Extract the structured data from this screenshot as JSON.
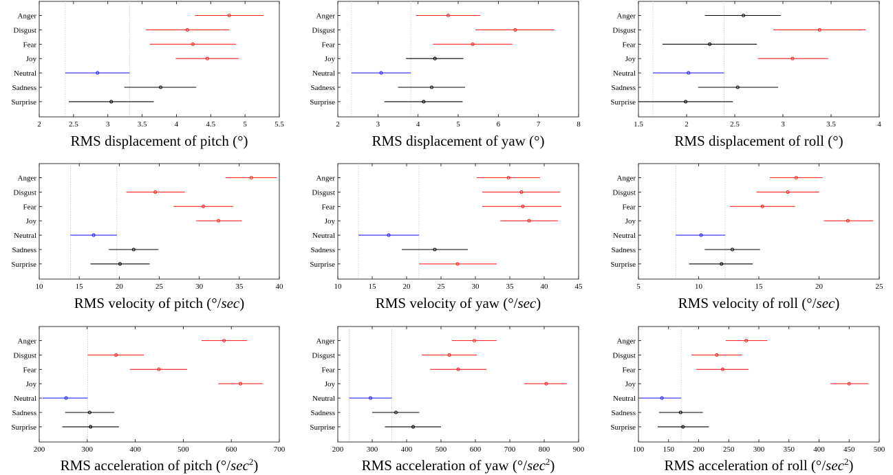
{
  "chart_data": [
    {
      "type": "scatter",
      "categories": [
        "Anger",
        "Disgust",
        "Fear",
        "Joy",
        "Neutral",
        "Sadness",
        "Surprise"
      ],
      "xlim": [
        2,
        5.5
      ],
      "xticks": [
        2,
        2.5,
        3,
        3.5,
        4,
        4.5,
        5,
        5.5
      ],
      "xtick_labels": [
        "2",
        "2.5",
        "3",
        "3.5",
        "4",
        "4.5",
        "5",
        "5.5"
      ],
      "points": [
        {
          "category": "Anger",
          "value": 4.77,
          "low": 4.27,
          "high": 5.27,
          "color": "red"
        },
        {
          "category": "Disgust",
          "value": 4.16,
          "low": 3.55,
          "high": 4.77,
          "color": "red"
        },
        {
          "category": "Fear",
          "value": 4.24,
          "low": 3.61,
          "high": 4.87,
          "color": "red"
        },
        {
          "category": "Joy",
          "value": 4.45,
          "low": 3.99,
          "high": 4.91,
          "color": "red"
        },
        {
          "category": "Neutral",
          "value": 2.85,
          "low": 2.38,
          "high": 3.32,
          "color": "blue"
        },
        {
          "category": "Sadness",
          "value": 3.77,
          "low": 3.24,
          "high": 4.29,
          "color": "black"
        },
        {
          "category": "Surprise",
          "value": 3.05,
          "low": 2.43,
          "high": 3.67,
          "color": "black"
        }
      ],
      "ref_lines": [
        2.38,
        3.32
      ],
      "xlabel_pre": "RMS displacement of pitch (°)",
      "xlabel_unit": "",
      "xlabel_sup": "",
      "xlabel_post": ""
    },
    {
      "type": "scatter",
      "categories": [
        "Anger",
        "Disgust",
        "Fear",
        "Joy",
        "Neutral",
        "Sadness",
        "Surprise"
      ],
      "xlim": [
        2,
        8
      ],
      "xticks": [
        2,
        3,
        4,
        5,
        6,
        7,
        8
      ],
      "xtick_labels": [
        "2",
        "3",
        "4",
        "5",
        "6",
        "7",
        "8"
      ],
      "points": [
        {
          "category": "Anger",
          "value": 4.75,
          "low": 3.95,
          "high": 5.55,
          "color": "red"
        },
        {
          "category": "Disgust",
          "value": 6.42,
          "low": 5.43,
          "high": 7.4,
          "color": "red"
        },
        {
          "category": "Fear",
          "value": 5.36,
          "low": 4.37,
          "high": 6.35,
          "color": "red"
        },
        {
          "category": "Joy",
          "value": 4.42,
          "low": 3.7,
          "high": 5.13,
          "color": "black"
        },
        {
          "category": "Neutral",
          "value": 3.08,
          "low": 2.34,
          "high": 3.82,
          "color": "blue"
        },
        {
          "category": "Sadness",
          "value": 4.34,
          "low": 3.5,
          "high": 5.17,
          "color": "black"
        },
        {
          "category": "Surprise",
          "value": 4.14,
          "low": 3.16,
          "high": 5.11,
          "color": "black"
        }
      ],
      "ref_lines": [
        2.34,
        3.82
      ],
      "xlabel_pre": "RMS displacement of yaw (°)",
      "xlabel_unit": "",
      "xlabel_sup": "",
      "xlabel_post": ""
    },
    {
      "type": "scatter",
      "categories": [
        "Anger",
        "Disgust",
        "Fear",
        "Joy",
        "Neutral",
        "Sadness",
        "Surprise"
      ],
      "xlim": [
        1.5,
        4
      ],
      "xticks": [
        1.5,
        2,
        2.5,
        3,
        3.5,
        4
      ],
      "xtick_labels": [
        "1.5",
        "2",
        "2.5",
        "3",
        "3.5",
        "4"
      ],
      "points": [
        {
          "category": "Anger",
          "value": 2.59,
          "low": 2.19,
          "high": 2.98,
          "color": "black"
        },
        {
          "category": "Disgust",
          "value": 3.38,
          "low": 2.9,
          "high": 3.86,
          "color": "red"
        },
        {
          "category": "Fear",
          "value": 2.24,
          "low": 1.75,
          "high": 2.73,
          "color": "black"
        },
        {
          "category": "Joy",
          "value": 3.1,
          "low": 2.74,
          "high": 3.47,
          "color": "red"
        },
        {
          "category": "Neutral",
          "value": 2.02,
          "low": 1.65,
          "high": 2.39,
          "color": "blue"
        },
        {
          "category": "Sadness",
          "value": 2.53,
          "low": 2.12,
          "high": 2.95,
          "color": "black"
        },
        {
          "category": "Surprise",
          "value": 1.99,
          "low": 1.5,
          "high": 2.48,
          "color": "black"
        }
      ],
      "ref_lines": [
        1.65,
        2.39
      ],
      "xlabel_pre": "RMS displacement of roll (°)",
      "xlabel_unit": "",
      "xlabel_sup": "",
      "xlabel_post": ""
    },
    {
      "type": "scatter",
      "categories": [
        "Anger",
        "Disgust",
        "Fear",
        "Joy",
        "Neutral",
        "Sadness",
        "Surprise"
      ],
      "xlim": [
        10,
        40
      ],
      "xticks": [
        10,
        15,
        20,
        25,
        30,
        35,
        40
      ],
      "xtick_labels": [
        "10",
        "15",
        "20",
        "25",
        "30",
        "35",
        "40"
      ],
      "points": [
        {
          "category": "Anger",
          "value": 36.5,
          "low": 33.3,
          "high": 39.7,
          "color": "red"
        },
        {
          "category": "Disgust",
          "value": 24.5,
          "low": 20.9,
          "high": 28.2,
          "color": "red"
        },
        {
          "category": "Fear",
          "value": 30.5,
          "low": 26.8,
          "high": 34.2,
          "color": "red"
        },
        {
          "category": "Joy",
          "value": 32.4,
          "low": 29.6,
          "high": 35.3,
          "color": "red"
        },
        {
          "category": "Neutral",
          "value": 16.8,
          "low": 13.9,
          "high": 19.7,
          "color": "blue"
        },
        {
          "category": "Sadness",
          "value": 21.8,
          "low": 18.7,
          "high": 24.9,
          "color": "black"
        },
        {
          "category": "Surprise",
          "value": 20.1,
          "low": 16.4,
          "high": 23.8,
          "color": "black"
        }
      ],
      "ref_lines": [
        13.9,
        19.7
      ],
      "xlabel_pre": "RMS velocity of pitch (°/",
      "xlabel_unit": "sec",
      "xlabel_sup": "",
      "xlabel_post": ")"
    },
    {
      "type": "scatter",
      "categories": [
        "Anger",
        "Disgust",
        "Fear",
        "Joy",
        "Neutral",
        "Sadness",
        "Surprise"
      ],
      "xlim": [
        10,
        45
      ],
      "xticks": [
        10,
        15,
        20,
        25,
        30,
        35,
        40,
        45
      ],
      "xtick_labels": [
        "10",
        "15",
        "20",
        "25",
        "30",
        "35",
        "40",
        "45"
      ],
      "points": [
        {
          "category": "Anger",
          "value": 34.8,
          "low": 30.2,
          "high": 39.4,
          "color": "red"
        },
        {
          "category": "Disgust",
          "value": 36.7,
          "low": 31.0,
          "high": 42.3,
          "color": "red"
        },
        {
          "category": "Fear",
          "value": 36.9,
          "low": 31.0,
          "high": 42.5,
          "color": "red"
        },
        {
          "category": "Joy",
          "value": 37.8,
          "low": 33.6,
          "high": 42.0,
          "color": "red"
        },
        {
          "category": "Neutral",
          "value": 17.4,
          "low": 13.0,
          "high": 21.8,
          "color": "blue"
        },
        {
          "category": "Sadness",
          "value": 24.1,
          "low": 19.3,
          "high": 28.9,
          "color": "black"
        },
        {
          "category": "Surprise",
          "value": 27.4,
          "low": 21.8,
          "high": 33.1,
          "color": "red"
        }
      ],
      "ref_lines": [
        13.0,
        21.8
      ],
      "xlabel_pre": "RMS velocity of yaw (°/",
      "xlabel_unit": "sec",
      "xlabel_sup": "",
      "xlabel_post": ")"
    },
    {
      "type": "scatter",
      "categories": [
        "Anger",
        "Disgust",
        "Fear",
        "Joy",
        "Neutral",
        "Sadness",
        "Surprise"
      ],
      "xlim": [
        5,
        25
      ],
      "xticks": [
        5,
        10,
        15,
        20,
        25
      ],
      "xtick_labels": [
        "5",
        "10",
        "15",
        "20",
        "25"
      ],
      "points": [
        {
          "category": "Anger",
          "value": 18.1,
          "low": 15.9,
          "high": 20.3,
          "color": "red"
        },
        {
          "category": "Disgust",
          "value": 17.4,
          "low": 14.8,
          "high": 20.0,
          "color": "red"
        },
        {
          "category": "Fear",
          "value": 15.3,
          "low": 12.6,
          "high": 18.0,
          "color": "red"
        },
        {
          "category": "Joy",
          "value": 22.4,
          "low": 20.4,
          "high": 24.5,
          "color": "red"
        },
        {
          "category": "Neutral",
          "value": 10.2,
          "low": 8.1,
          "high": 12.2,
          "color": "blue"
        },
        {
          "category": "Sadness",
          "value": 12.8,
          "low": 10.5,
          "high": 15.1,
          "color": "black"
        },
        {
          "category": "Surprise",
          "value": 11.9,
          "low": 9.2,
          "high": 14.5,
          "color": "black"
        }
      ],
      "ref_lines": [
        8.1,
        12.2
      ],
      "xlabel_pre": "RMS velocity of roll (°/",
      "xlabel_unit": "sec",
      "xlabel_sup": "",
      "xlabel_post": ")"
    },
    {
      "type": "scatter",
      "categories": [
        "Anger",
        "Disgust",
        "Fear",
        "Joy",
        "Neutral",
        "Sadness",
        "Surprise"
      ],
      "xlim": [
        200,
        700
      ],
      "xticks": [
        200,
        300,
        400,
        500,
        600,
        700
      ],
      "xtick_labels": [
        "200",
        "300",
        "400",
        "500",
        "600",
        "700"
      ],
      "points": [
        {
          "category": "Anger",
          "value": 585,
          "low": 538,
          "high": 633,
          "color": "red"
        },
        {
          "category": "Disgust",
          "value": 360,
          "low": 301,
          "high": 418,
          "color": "red"
        },
        {
          "category": "Fear",
          "value": 449,
          "low": 389,
          "high": 508,
          "color": "red"
        },
        {
          "category": "Joy",
          "value": 619,
          "low": 573,
          "high": 665,
          "color": "red"
        },
        {
          "category": "Neutral",
          "value": 256,
          "low": 207,
          "high": 301,
          "color": "blue"
        },
        {
          "category": "Sadness",
          "value": 305,
          "low": 254,
          "high": 356,
          "color": "black"
        },
        {
          "category": "Surprise",
          "value": 307,
          "low": 248,
          "high": 366,
          "color": "black"
        }
      ],
      "ref_lines": [
        301
      ],
      "xlabel_pre": "RMS acceleration of pitch (°/",
      "xlabel_unit": "sec",
      "xlabel_sup": "2",
      "xlabel_post": ")"
    },
    {
      "type": "scatter",
      "categories": [
        "Anger",
        "Disgust",
        "Fear",
        "Joy",
        "Neutral",
        "Sadness",
        "Surprise"
      ],
      "xlim": [
        200,
        900
      ],
      "xticks": [
        200,
        300,
        400,
        500,
        600,
        700,
        800,
        900
      ],
      "xtick_labels": [
        "200",
        "300",
        "400",
        "500",
        "600",
        "700",
        "800",
        "900"
      ],
      "points": [
        {
          "category": "Anger",
          "value": 597,
          "low": 532,
          "high": 662,
          "color": "red"
        },
        {
          "category": "Disgust",
          "value": 524,
          "low": 444,
          "high": 604,
          "color": "red"
        },
        {
          "category": "Fear",
          "value": 550,
          "low": 469,
          "high": 632,
          "color": "red"
        },
        {
          "category": "Joy",
          "value": 806,
          "low": 742,
          "high": 866,
          "color": "red"
        },
        {
          "category": "Neutral",
          "value": 295,
          "low": 233,
          "high": 357,
          "color": "blue"
        },
        {
          "category": "Sadness",
          "value": 369,
          "low": 300,
          "high": 437,
          "color": "black"
        },
        {
          "category": "Surprise",
          "value": 419,
          "low": 337,
          "high": 500,
          "color": "black"
        }
      ],
      "ref_lines": [
        233,
        357
      ],
      "xlabel_pre": "RMS acceleration of yaw (°/",
      "xlabel_unit": "sec",
      "xlabel_sup": "2",
      "xlabel_post": ")"
    },
    {
      "type": "scatter",
      "categories": [
        "Anger",
        "Disgust",
        "Fear",
        "Joy",
        "Neutral",
        "Sadness",
        "Surprise"
      ],
      "xlim": [
        100,
        500
      ],
      "xticks": [
        100,
        150,
        200,
        250,
        300,
        350,
        400,
        450,
        500
      ],
      "xtick_labels": [
        "100",
        "150",
        "200",
        "250",
        "300",
        "350",
        "400",
        "450",
        "500"
      ],
      "points": [
        {
          "category": "Anger",
          "value": 279,
          "low": 245,
          "high": 314,
          "color": "red"
        },
        {
          "category": "Disgust",
          "value": 230,
          "low": 188,
          "high": 272,
          "color": "red"
        },
        {
          "category": "Fear",
          "value": 240,
          "low": 196,
          "high": 283,
          "color": "red"
        },
        {
          "category": "Joy",
          "value": 450,
          "low": 419,
          "high": 482,
          "color": "red"
        },
        {
          "category": "Neutral",
          "value": 139,
          "low": 104,
          "high": 171,
          "color": "blue"
        },
        {
          "category": "Sadness",
          "value": 170,
          "low": 134,
          "high": 207,
          "color": "black"
        },
        {
          "category": "Surprise",
          "value": 174,
          "low": 132,
          "high": 217,
          "color": "black"
        }
      ],
      "ref_lines": [
        171
      ],
      "xlabel_pre": "RMS acceleration of roll (°/",
      "xlabel_unit": "sec",
      "xlabel_sup": "2",
      "xlabel_post": ")"
    }
  ],
  "colors": {
    "red": "#ff2020",
    "blue": "#2020ff",
    "black": "#000000",
    "ref": "#c8c8c8"
  }
}
